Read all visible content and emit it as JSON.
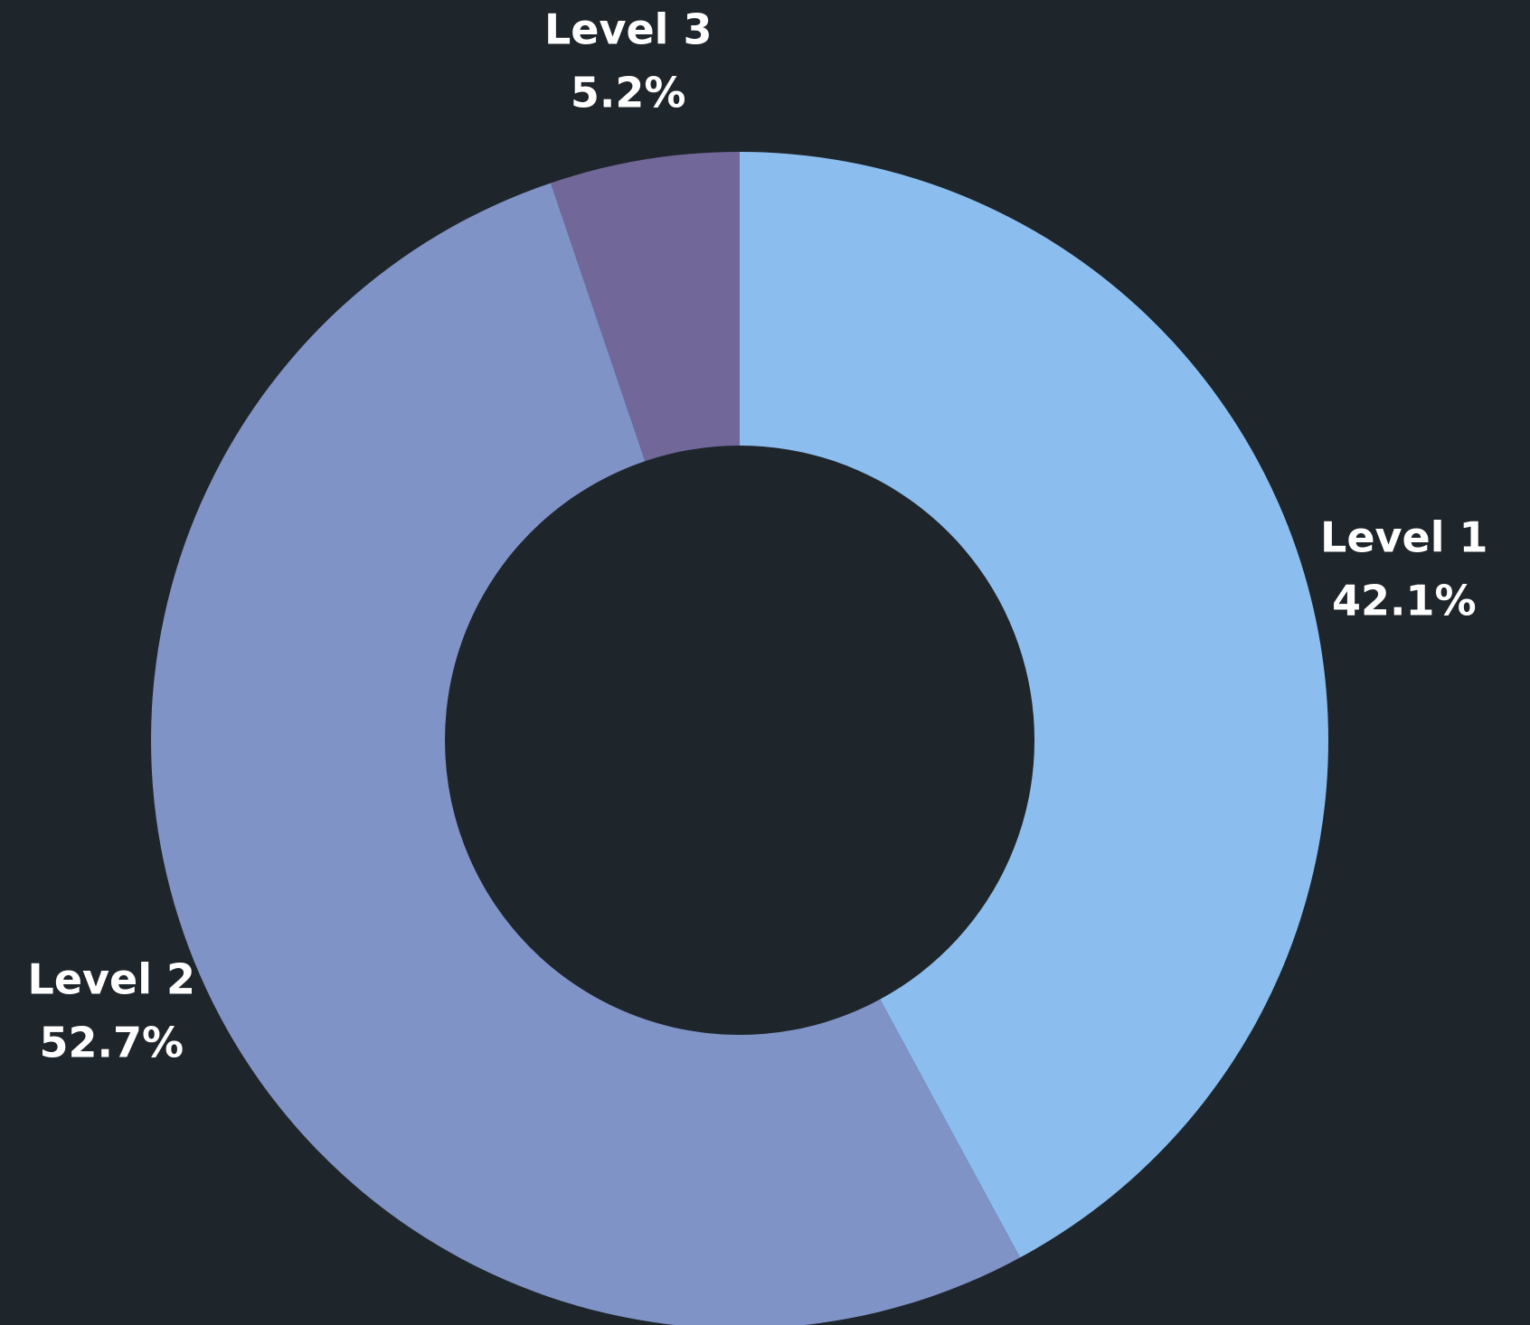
{
  "chart_data": {
    "type": "donut",
    "categories": [
      "Level 1",
      "Level 2",
      "Level 3"
    ],
    "values": [
      42.1,
      52.7,
      5.2
    ],
    "value_labels": [
      "42.1%",
      "52.7%",
      "5.2%"
    ],
    "colors": [
      "#8bbeee",
      "#7f93c7",
      "#726799"
    ]
  }
}
